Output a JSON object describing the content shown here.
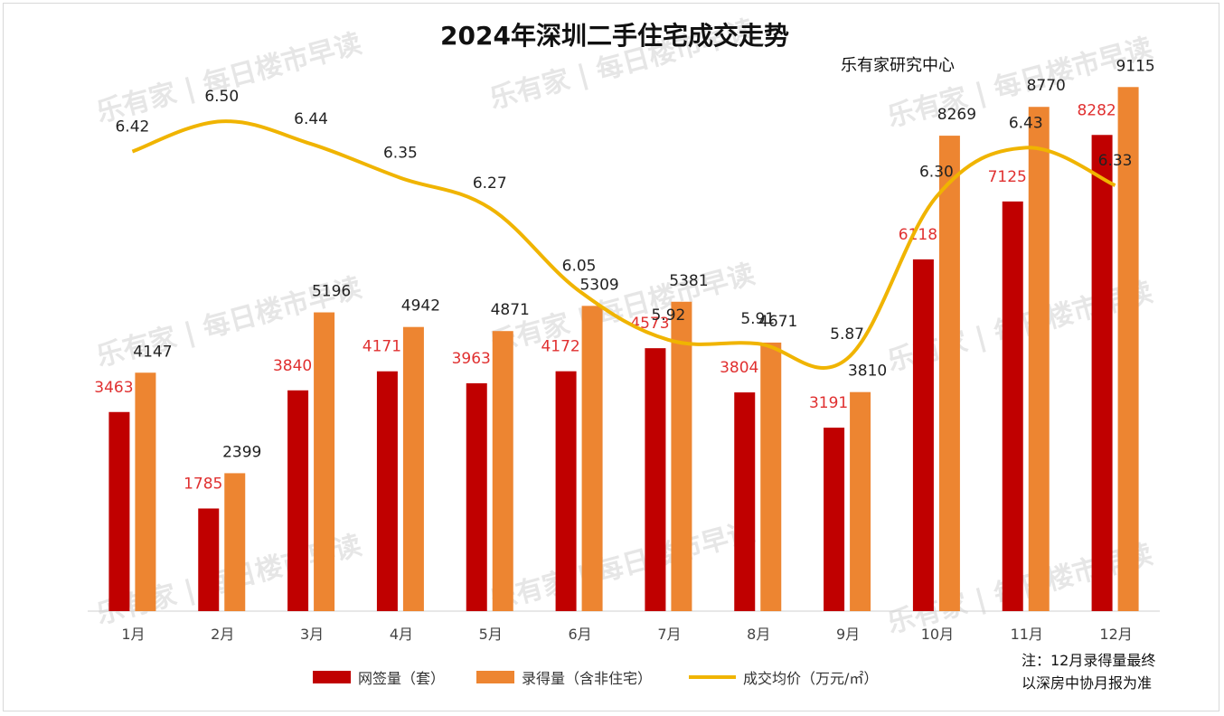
{
  "chart_data": {
    "type": "bar",
    "title": "2024年深圳二手住宅成交走势",
    "source": "乐有家研究中心",
    "watermark": "乐有家 | 每日楼市早读",
    "categories": [
      "1月",
      "2月",
      "3月",
      "4月",
      "5月",
      "6月",
      "7月",
      "8月",
      "9月",
      "10月",
      "11月",
      "12月"
    ],
    "series": [
      {
        "name": "网签量（套）",
        "type": "bar",
        "color": "#C00000",
        "label_color": "#E03030",
        "values": [
          3463,
          1785,
          3840,
          4171,
          3963,
          4172,
          4573,
          3804,
          3191,
          6118,
          7125,
          8282
        ]
      },
      {
        "name": "录得量（含非住宅）",
        "type": "bar",
        "color": "#ED8531",
        "label_color": "#222222",
        "values": [
          4147,
          2399,
          5196,
          4942,
          4871,
          5309,
          5381,
          4671,
          3810,
          8269,
          8770,
          9115
        ]
      },
      {
        "name": "成交均价（万元/㎡）",
        "type": "line",
        "color": "#F0B400",
        "label_color": "#222222",
        "values": [
          "6.42",
          "6.50",
          "6.44",
          "6.35",
          "6.27",
          "6.05",
          "5.92",
          "5.91",
          "5.87",
          "6.30",
          "6.43",
          "6.33"
        ]
      }
    ],
    "ylim_bars": [
      0,
      10000
    ],
    "ylim_line": [
      5.2,
      6.75
    ],
    "grid": false,
    "legend_position": "bottom",
    "note": [
      "注：12月录得量最终",
      "以深房中协月报为准"
    ]
  }
}
